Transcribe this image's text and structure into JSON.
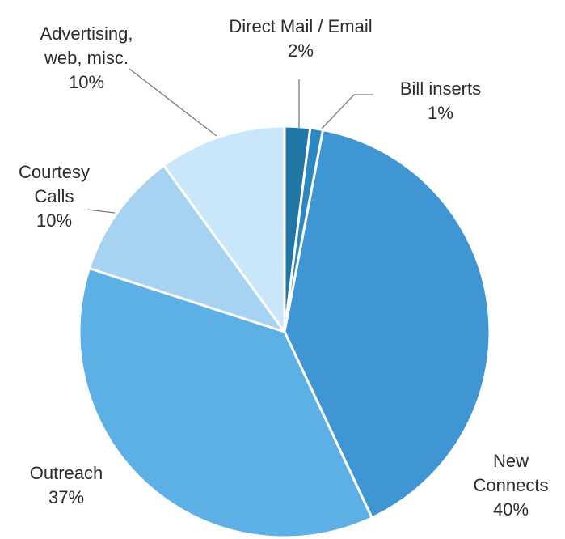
{
  "chart_data": {
    "type": "pie",
    "slices": [
      {
        "lines": [
          "Direct Mail / Email",
          "2%"
        ],
        "value": 2,
        "color": "#2176a6"
      },
      {
        "lines": [
          "Bill inserts",
          "1%"
        ],
        "value": 1,
        "color": "#2b88c0"
      },
      {
        "lines": [
          "New",
          "Connects",
          "40%"
        ],
        "value": 40,
        "color": "#3f96d2"
      },
      {
        "lines": [
          "Outreach",
          "37%"
        ],
        "value": 37,
        "color": "#5db0e5"
      },
      {
        "lines": [
          "Courtesy",
          "Calls",
          "10%"
        ],
        "value": 10,
        "color": "#a6d3f2"
      },
      {
        "lines": [
          "Advertising,",
          "web, misc.",
          "10%"
        ],
        "value": 10,
        "color": "#c9e6fa"
      }
    ],
    "start_angle_deg": 0,
    "direction": "clockwise"
  }
}
